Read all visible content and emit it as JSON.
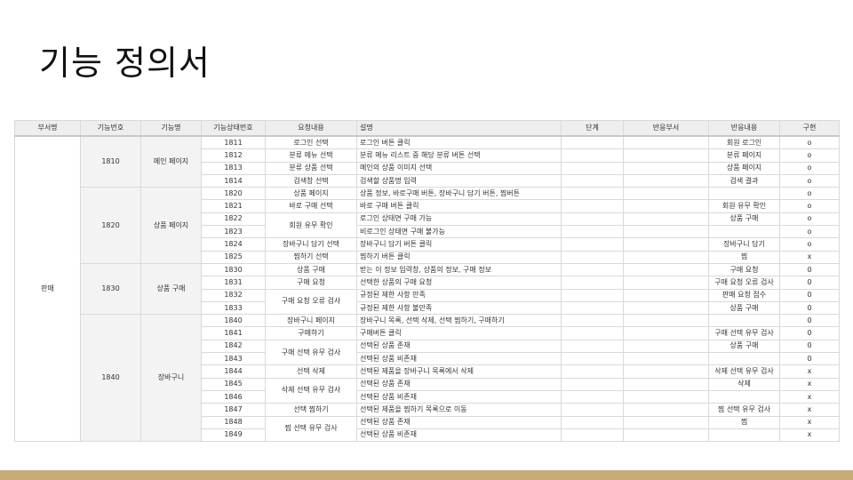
{
  "title": "기능 정의서",
  "columns": [
    "부서명",
    "기능번호",
    "기능명",
    "기능상태번호",
    "요청내용",
    "설명",
    "단계",
    "반응부서",
    "반응내용",
    "구현"
  ],
  "dept": "판매",
  "groups": [
    {
      "code": "1810",
      "name": "메인 페이지",
      "rows": [
        {
          "status": "1811",
          "request": "로그인 선택",
          "desc": "로그인 버튼 클릭",
          "response": "회원 로그인",
          "impl": "o"
        },
        {
          "status": "1812",
          "request": "분류 메뉴 선택",
          "desc": "분류 메뉴 리스트 중 해당 분류 버튼 선택",
          "response": "분류 페이지",
          "impl": "o"
        },
        {
          "status": "1813",
          "request": "분류 상품 선택",
          "desc": "메인의 상품 이미지 선택",
          "response": "상품 페이지",
          "impl": "o"
        },
        {
          "status": "1814",
          "request": "검색창 선택",
          "desc": "검색할 상품명 입력",
          "response": "검색 결과",
          "impl": "o"
        }
      ]
    },
    {
      "code": "1820",
      "name": "상품 페이지",
      "rows": [
        {
          "status": "1820",
          "request": "상품 페이지",
          "desc": "상품 정보, 바로구매 버튼, 장바구니 담기 버튼, 찜버튼",
          "response": "",
          "impl": "o"
        },
        {
          "status": "1821",
          "request": "바로 구매 선택",
          "desc": "바로 구매 버튼 클릭",
          "response": "회원 유무 확인",
          "impl": "o"
        },
        {
          "status": "1822",
          "request": "회원 유무 확인",
          "desc": "로그인 상태면 구매 가능",
          "response": "상품 구매",
          "impl": "o"
        },
        {
          "status": "1823",
          "request": "",
          "desc": "비로그인 상태면 구매 불가능",
          "response": "",
          "impl": "o"
        },
        {
          "status": "1824",
          "request": "장바구니 담기 선택",
          "desc": "장바구니 담기 버튼 클릭",
          "response": "장바구니 담기",
          "impl": "o"
        },
        {
          "status": "1825",
          "request": "찜하기 선택",
          "desc": "찜하기 버튼 클릭",
          "response": "찜",
          "impl": "x"
        }
      ]
    },
    {
      "code": "1830",
      "name": "상품 구매",
      "rows": [
        {
          "status": "1830",
          "request": "상품 구매",
          "desc": "받는 이 정보 입력창, 상품의 정보, 구매 정보",
          "response": "구매 요청",
          "impl": "0"
        },
        {
          "status": "1831",
          "request": "구매 요청",
          "desc": "선택한 상품의 구매 요청",
          "response": "구매 요청 오류 검사",
          "impl": "0"
        },
        {
          "status": "1832",
          "request": "구매 요청 오류 검사",
          "desc": "규정된 제한 사항 만족",
          "response": "판매 요청 접수",
          "impl": "0"
        },
        {
          "status": "1833",
          "request": "",
          "desc": "규정된 제한 사항 불만족",
          "response": "상품 구매",
          "impl": "0"
        }
      ]
    },
    {
      "code": "1840",
      "name": "장바구니",
      "rows": [
        {
          "status": "1840",
          "request": "장바구니 페이지",
          "desc": "장바구니 목록, 선택 삭제, 선택 찜하기, 구매하기",
          "response": "",
          "impl": "0"
        },
        {
          "status": "1841",
          "request": "구매하기",
          "desc": "구매버튼 클릭",
          "response": "구매 선택 유무 검사",
          "impl": "0"
        },
        {
          "status": "1842",
          "request": "구매 선택 유무 검사",
          "desc": "선택된 상품 존재",
          "response": "상품 구매",
          "impl": "0"
        },
        {
          "status": "1843",
          "request": "",
          "desc": "선택된 상품 비존재",
          "response": "",
          "impl": "0"
        },
        {
          "status": "1844",
          "request": "선택 삭제",
          "desc": "선택된 제품을 장바구니 목록에서 삭제",
          "response": "삭제 선택 유무 검사",
          "impl": "x"
        },
        {
          "status": "1845",
          "request": "삭제 선택 유무 검사",
          "desc": "선택된 상품 존재",
          "response": "삭제",
          "impl": "x"
        },
        {
          "status": "1846",
          "request": "",
          "desc": "선택된 상품 비존재",
          "response": "",
          "impl": "x"
        },
        {
          "status": "1847",
          "request": "선택 찜하기",
          "desc": "선택된 제품을 찜하기 목록으로 이동",
          "response": "찜 선택 유무 검사",
          "impl": "x"
        },
        {
          "status": "1848",
          "request": "찜 선택 유무 검사",
          "desc": "선택된 상품 존재",
          "response": "찜",
          "impl": "x"
        },
        {
          "status": "1849",
          "request": "",
          "desc": "선택된 상품 비존재",
          "response": "",
          "impl": "x"
        }
      ]
    }
  ]
}
